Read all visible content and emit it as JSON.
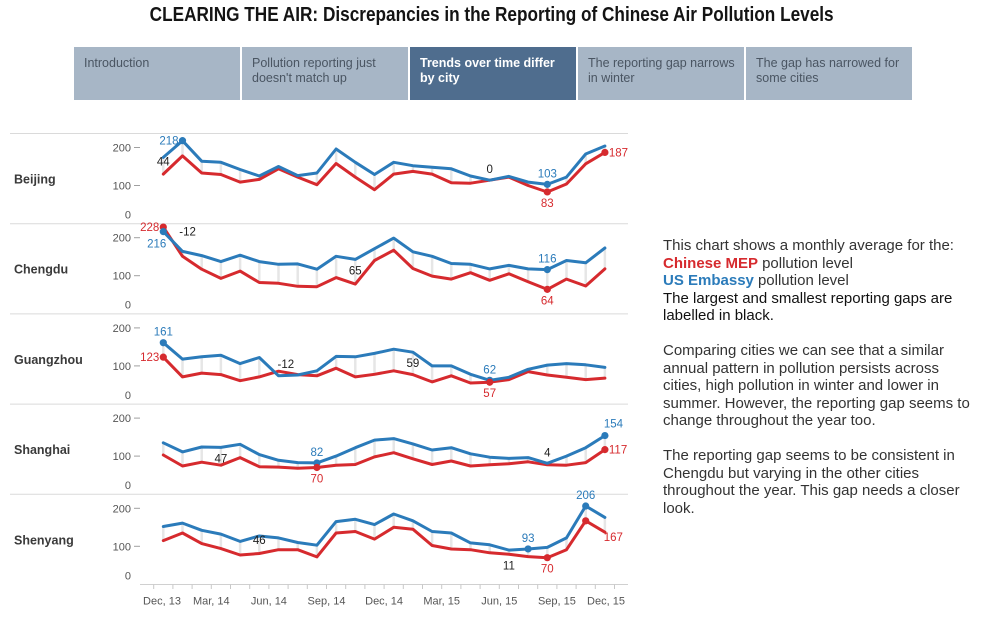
{
  "header": {
    "title": "CLEARING THE AIR: Discrepancies in the Reporting of Chinese Air Pollution Levels"
  },
  "tabs": [
    {
      "label": "Introduction",
      "active": false
    },
    {
      "label": "Pollution reporting just doesn't match up",
      "active": false
    },
    {
      "label": "Trends over time differ by city",
      "active": true
    },
    {
      "label": "The reporting gap narrows in winter",
      "active": false
    },
    {
      "label": "The gap has narrowed for some cities",
      "active": false
    }
  ],
  "notes": {
    "intro": "This chart shows a monthly average for the:",
    "mep_label": "Chinese MEP",
    "mep_suffix": "pollution level",
    "us_label": "US Embassy",
    "us_suffix": "pollution level",
    "gap_note": "The largest and smallest reporting gaps are labelled in black.",
    "paragraph_1": "Comparing cities we can see that a similar annual pattern in pollution persists across cities, high pollution in winter and lower in summer. However, the reporting gap seems to change throughout the year too.",
    "paragraph_2": "The reporting gap seems to be consistent in Chengdu but varying in the other cities throughout the year. This gap needs a closer look."
  },
  "chart_data": {
    "type": "line",
    "title": "CLEARING THE AIR: Discrepancies in the Reporting of Chinese Air Pollution Levels",
    "xlabel": "",
    "ylabel": "",
    "x_tick_labels": [
      "Dec, 13",
      "Mar, 14",
      "Jun, 14",
      "Sep, 14",
      "Dec, 14",
      "Mar, 15",
      "Jun, 15",
      "Sep, 15",
      "Dec, 15"
    ],
    "y_ticks": [
      0,
      100,
      200
    ],
    "ylim": [
      0,
      235
    ],
    "grid": false,
    "colors": {
      "mep": "#d62a2e",
      "us": "#2b7bba",
      "gap": "#1e1e1e"
    },
    "series_names": {
      "mep": "Chinese MEP",
      "us": "US Embassy"
    },
    "panels": [
      {
        "city": "Beijing",
        "us_embassy": [
          174,
          218,
          164,
          161,
          142,
          125,
          150,
          126,
          133,
          196,
          161,
          129,
          161,
          152,
          148,
          144,
          125,
          114,
          124,
          109,
          103,
          122,
          183,
          204
        ],
        "chinese_mep": [
          130,
          178,
          133,
          129,
          109,
          116,
          144,
          122,
          102,
          158,
          122,
          89,
          130,
          137,
          130,
          107,
          106,
          114,
          122,
          100,
          83,
          104,
          157,
          187
        ],
        "annotations": [
          {
            "text": "218",
            "kind": "value",
            "series": "us",
            "index": 1,
            "pos": "left"
          },
          {
            "text": "44",
            "kind": "gap",
            "series": "us",
            "index": 0,
            "pos": "on"
          },
          {
            "text": "0",
            "kind": "gap",
            "series": "us",
            "index": 17,
            "pos": "above"
          },
          {
            "text": "103",
            "kind": "value",
            "series": "us",
            "index": 20,
            "pos": "above"
          },
          {
            "text": "83",
            "kind": "value",
            "series": "mep",
            "index": 20,
            "pos": "below"
          },
          {
            "text": "187",
            "kind": "value",
            "series": "mep",
            "index": 23,
            "pos": "right"
          }
        ]
      },
      {
        "city": "Chengdu",
        "us_embassy": [
          216,
          164,
          153,
          137,
          154,
          137,
          130,
          131,
          117,
          151,
          143,
          171,
          199,
          163,
          151,
          132,
          130,
          118,
          127,
          118,
          116,
          140,
          134,
          173
        ],
        "chinese_mep": [
          228,
          151,
          117,
          93,
          112,
          82,
          80,
          72,
          71,
          95,
          78,
          140,
          167,
          119,
          99,
          91,
          108,
          88,
          105,
          84,
          64,
          91,
          73,
          118
        ],
        "annotations": [
          {
            "text": "228",
            "kind": "value",
            "series": "mep",
            "index": 0,
            "pos": "left"
          },
          {
            "text": "216",
            "kind": "value",
            "series": "us",
            "index": 0,
            "pos": "below-left"
          },
          {
            "text": "-12",
            "kind": "gap",
            "series": "us",
            "index": 0,
            "pos": "far-right"
          },
          {
            "text": "65",
            "kind": "gap",
            "series": "us",
            "index": 10,
            "pos": "below"
          },
          {
            "text": "116",
            "kind": "value",
            "series": "us",
            "index": 20,
            "pos": "above"
          },
          {
            "text": "64",
            "kind": "value",
            "series": "mep",
            "index": 20,
            "pos": "below"
          }
        ]
      },
      {
        "city": "Guangzhou",
        "us_embassy": [
          161,
          118,
          124,
          128,
          106,
          122,
          74,
          76,
          87,
          125,
          124,
          133,
          144,
          136,
          100,
          100,
          78,
          62,
          70,
          91,
          102,
          106,
          103,
          96
        ],
        "chinese_mep": [
          123,
          71,
          81,
          77,
          61,
          71,
          86,
          77,
          74,
          94,
          71,
          78,
          87,
          77,
          58,
          74,
          55,
          57,
          64,
          85,
          76,
          70,
          64,
          68
        ],
        "annotations": [
          {
            "text": "161",
            "kind": "value",
            "series": "us",
            "index": 0,
            "pos": "above"
          },
          {
            "text": "123",
            "kind": "value",
            "series": "mep",
            "index": 0,
            "pos": "left"
          },
          {
            "text": "-12",
            "kind": "gap",
            "series": "us",
            "index": 6,
            "pos": "above-right"
          },
          {
            "text": "59",
            "kind": "gap",
            "series": "us",
            "index": 13,
            "pos": "below"
          },
          {
            "text": "62",
            "kind": "value",
            "series": "us",
            "index": 17,
            "pos": "above"
          },
          {
            "text": "57",
            "kind": "value",
            "series": "mep",
            "index": 17,
            "pos": "below"
          }
        ]
      },
      {
        "city": "Shanghai",
        "us_embassy": [
          135,
          111,
          124,
          123,
          131,
          104,
          89,
          83,
          82,
          100,
          122,
          142,
          146,
          132,
          116,
          122,
          106,
          97,
          94,
          96,
          81,
          100,
          122,
          154
        ],
        "chinese_mep": [
          103,
          74,
          84,
          76,
          96,
          72,
          71,
          68,
          70,
          76,
          78,
          98,
          109,
          93,
          78,
          87,
          74,
          77,
          80,
          85,
          77,
          76,
          83,
          117
        ],
        "annotations": [
          {
            "text": "47",
            "kind": "gap",
            "series": "us",
            "index": 3,
            "pos": "below"
          },
          {
            "text": "82",
            "kind": "value",
            "series": "us",
            "index": 8,
            "pos": "above"
          },
          {
            "text": "70",
            "kind": "value",
            "series": "mep",
            "index": 8,
            "pos": "below"
          },
          {
            "text": "4",
            "kind": "gap",
            "series": "us",
            "index": 20,
            "pos": "above"
          },
          {
            "text": "154",
            "kind": "value",
            "series": "us",
            "index": 23,
            "pos": "above-right"
          },
          {
            "text": "117",
            "kind": "value",
            "series": "mep",
            "index": 23,
            "pos": "right"
          }
        ]
      },
      {
        "city": "Shenyang",
        "us_embassy": [
          152,
          161,
          142,
          132,
          113,
          127,
          122,
          110,
          103,
          165,
          171,
          157,
          185,
          167,
          139,
          135,
          109,
          104,
          90,
          93,
          97,
          122,
          206,
          176
        ],
        "chinese_mep": [
          115,
          135,
          107,
          94,
          77,
          81,
          91,
          91,
          72,
          135,
          139,
          119,
          150,
          145,
          102,
          93,
          91,
          83,
          79,
          73,
          70,
          91,
          167,
          137
        ],
        "annotations": [
          {
            "text": "46",
            "kind": "gap",
            "series": "us",
            "index": 5,
            "pos": "on"
          },
          {
            "text": "11",
            "kind": "gap",
            "series": "mep",
            "index": 18,
            "pos": "below"
          },
          {
            "text": "93",
            "kind": "value",
            "series": "us",
            "index": 19,
            "pos": "above"
          },
          {
            "text": "70",
            "kind": "value",
            "series": "mep",
            "index": 20,
            "pos": "below"
          },
          {
            "text": "206",
            "kind": "value",
            "series": "us",
            "index": 22,
            "pos": "above"
          },
          {
            "text": "167",
            "kind": "value",
            "series": "mep",
            "index": 22,
            "pos": "below-right"
          }
        ]
      }
    ]
  }
}
